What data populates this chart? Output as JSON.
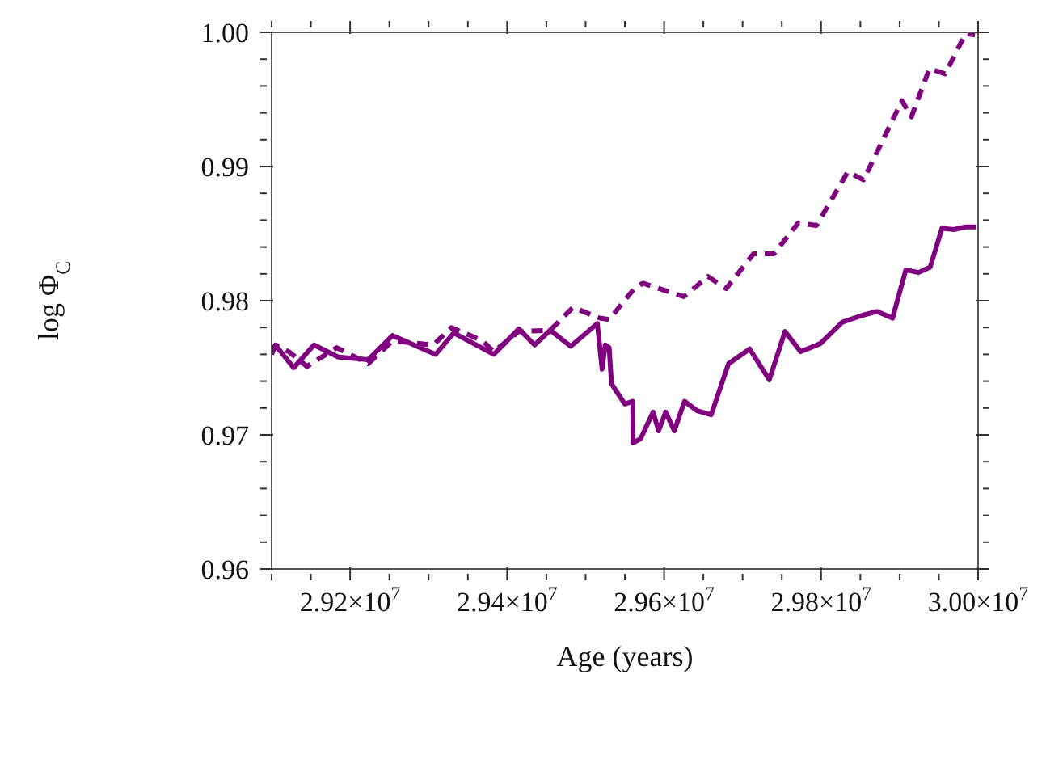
{
  "chart_data": {
    "type": "line",
    "xlabel": "Age (years)",
    "ylabel": "log Φ$_{C}$",
    "xlim": [
      29100000,
      30000000
    ],
    "xticks": [
      {
        "value": 29100000,
        "label": null
      },
      {
        "value": 29150000,
        "label": null
      },
      {
        "value": 29200000,
        "label": "2.92×10$^{7}$"
      },
      {
        "value": 29250000,
        "label": null
      },
      {
        "value": 29300000,
        "label": null
      },
      {
        "value": 29350000,
        "label": null
      },
      {
        "value": 29400000,
        "label": "2.94×10$^{7}$"
      },
      {
        "value": 29450000,
        "label": null
      },
      {
        "value": 29500000,
        "label": null
      },
      {
        "value": 29550000,
        "label": null
      },
      {
        "value": 29600000,
        "label": "2.96×10$^{7}$"
      },
      {
        "value": 29650000,
        "label": null
      },
      {
        "value": 29700000,
        "label": null
      },
      {
        "value": 29750000,
        "label": null
      },
      {
        "value": 29800000,
        "label": "2.98×10$^{7}$"
      },
      {
        "value": 29850000,
        "label": null
      },
      {
        "value": 29900000,
        "label": null
      },
      {
        "value": 29950000,
        "label": null
      },
      {
        "value": 30000000,
        "label": "3.00×10$^{7}$"
      }
    ],
    "ylim": [
      0.96,
      1.0
    ],
    "yticks": [
      {
        "value": 0.96,
        "label": "0.96"
      },
      {
        "value": 0.962,
        "label": null
      },
      {
        "value": 0.964,
        "label": null
      },
      {
        "value": 0.966,
        "label": null
      },
      {
        "value": 0.968,
        "label": null
      },
      {
        "value": 0.97,
        "label": "0.97"
      },
      {
        "value": 0.972,
        "label": null
      },
      {
        "value": 0.974,
        "label": null
      },
      {
        "value": 0.976,
        "label": null
      },
      {
        "value": 0.978,
        "label": null
      },
      {
        "value": 0.98,
        "label": "0.98"
      },
      {
        "value": 0.982,
        "label": null
      },
      {
        "value": 0.984,
        "label": null
      },
      {
        "value": 0.986,
        "label": null
      },
      {
        "value": 0.988,
        "label": null
      },
      {
        "value": 0.99,
        "label": "0.99"
      },
      {
        "value": 0.992,
        "label": null
      },
      {
        "value": 0.994,
        "label": null
      },
      {
        "value": 0.996,
        "label": null
      },
      {
        "value": 0.998,
        "label": null
      },
      {
        "value": 1.0,
        "label": "1.00"
      }
    ],
    "marker": "none",
    "series": [
      {
        "color": "#800080",
        "line_style": "solid",
        "x": [
          29100000,
          29105000,
          29128000,
          29154000,
          29185000,
          29223000,
          29254000,
          29309000,
          29332000,
          29383000,
          29415000,
          29435000,
          29455000,
          29481000,
          29515000,
          29521000,
          29525000,
          29530000,
          29533000,
          29550000,
          29560000,
          29560500,
          29570000,
          29586000,
          29593000,
          29602000,
          29613000,
          29626000,
          29642000,
          29660000,
          29682000,
          29709000,
          29734000,
          29754000,
          29774000,
          29799000,
          29827000,
          29852000,
          29871000,
          29891000,
          29908000,
          29924000,
          29939000,
          29954000,
          29969000,
          29984000,
          29998000
        ],
        "values": [
          0.976,
          0.9767,
          0.975,
          0.9767,
          0.9758,
          0.9756,
          0.9774,
          0.976,
          0.9776,
          0.976,
          0.9779,
          0.9767,
          0.9778,
          0.9766,
          0.9783,
          0.9749,
          0.9767,
          0.9765,
          0.9738,
          0.9723,
          0.9725,
          0.9694,
          0.9697,
          0.9717,
          0.9703,
          0.9717,
          0.9703,
          0.9725,
          0.9718,
          0.9715,
          0.9753,
          0.9764,
          0.9741,
          0.9777,
          0.9762,
          0.9768,
          0.9784,
          0.9789,
          0.9792,
          0.9787,
          0.9823,
          0.9821,
          0.9825,
          0.9854,
          0.9853,
          0.9855,
          0.9855
        ]
      },
      {
        "color": "#800080",
        "line_style": "dashed",
        "x": [
          29100000,
          29105000,
          29122000,
          29145000,
          29183000,
          29223000,
          29254000,
          29306000,
          29329000,
          29369000,
          29383000,
          29415000,
          29455000,
          29484000,
          29518000,
          29530000,
          29562000,
          29573000,
          29625000,
          29656000,
          29679000,
          29714000,
          29740000,
          29771000,
          29794000,
          29834000,
          29854000,
          29903000,
          29915000,
          29938000,
          29958000,
          29984000,
          29996000
        ],
        "values": [
          0.9762,
          0.9767,
          0.9762,
          0.9751,
          0.9765,
          0.9753,
          0.977,
          0.9767,
          0.978,
          0.977,
          0.9762,
          0.9777,
          0.9778,
          0.9795,
          0.9787,
          0.9786,
          0.9809,
          0.9813,
          0.9803,
          0.9818,
          0.9809,
          0.9835,
          0.9835,
          0.9858,
          0.9856,
          0.9896,
          0.989,
          0.9949,
          0.9937,
          0.9973,
          0.9969,
          0.9999,
          0.9998
        ]
      }
    ]
  }
}
